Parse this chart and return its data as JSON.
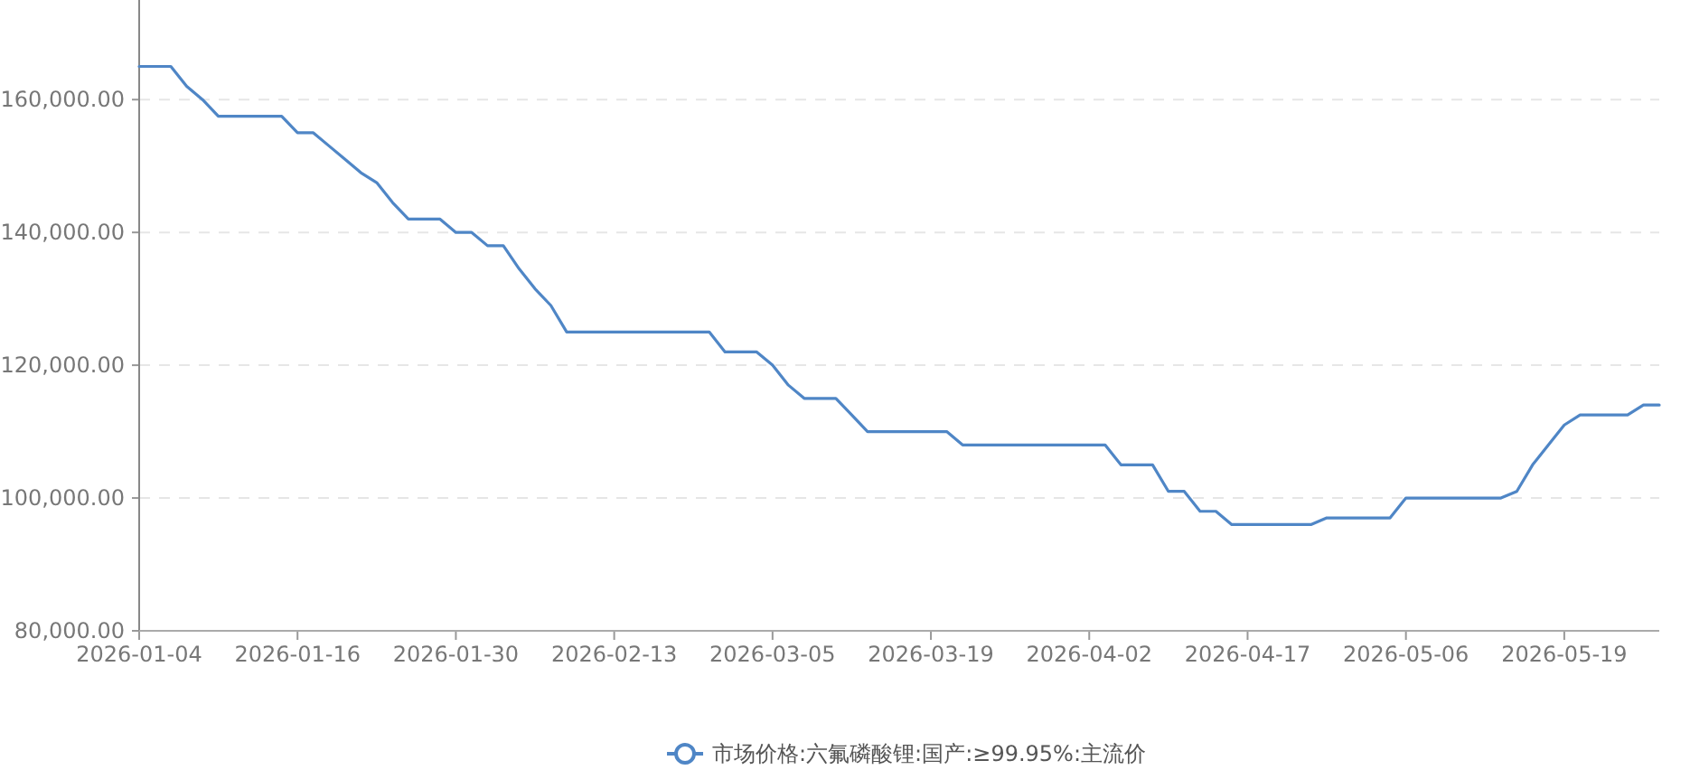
{
  "chart_data": {
    "type": "line",
    "categories": [
      "2026-01-04",
      null,
      null,
      null,
      null,
      null,
      null,
      null,
      null,
      null,
      "2026-01-16",
      null,
      null,
      null,
      null,
      null,
      null,
      null,
      null,
      null,
      "2026-01-30",
      null,
      null,
      null,
      null,
      null,
      null,
      null,
      null,
      null,
      "2026-02-13",
      null,
      null,
      null,
      null,
      null,
      null,
      null,
      null,
      null,
      "2026-03-05",
      null,
      null,
      null,
      null,
      null,
      null,
      null,
      null,
      null,
      "2026-03-19",
      null,
      null,
      null,
      null,
      null,
      null,
      null,
      null,
      null,
      "2026-04-02",
      null,
      null,
      null,
      null,
      null,
      null,
      null,
      null,
      null,
      "2026-04-17",
      null,
      null,
      null,
      null,
      null,
      null,
      null,
      null,
      null,
      "2026-05-06",
      null,
      null,
      null,
      null,
      null,
      null,
      null,
      null,
      null,
      "2026-05-19",
      null,
      null,
      null,
      null,
      null,
      null
    ],
    "series": [
      {
        "name": "市场价格:六氟磷酸锂:国产:≥99.95%:主流价",
        "color": "#4f86c6",
        "values": [
          165000,
          165000,
          165000,
          162000,
          160000,
          157500,
          157500,
          157500,
          157500,
          157500,
          155000,
          155000,
          153000,
          151000,
          149000,
          147500,
          144500,
          142000,
          142000,
          142000,
          140000,
          140000,
          138000,
          138000,
          134500,
          131500,
          129000,
          125000,
          125000,
          125000,
          125000,
          125000,
          125000,
          125000,
          125000,
          125000,
          125000,
          122000,
          122000,
          122000,
          120000,
          117000,
          115000,
          115000,
          115000,
          112500,
          110000,
          110000,
          110000,
          110000,
          110000,
          110000,
          108000,
          108000,
          108000,
          108000,
          108000,
          108000,
          108000,
          108000,
          108000,
          108000,
          105000,
          105000,
          105000,
          101000,
          101000,
          98000,
          98000,
          96000,
          96000,
          96000,
          96000,
          96000,
          96000,
          97000,
          97000,
          97000,
          97000,
          97000,
          100000,
          100000,
          100000,
          100000,
          100000,
          100000,
          100000,
          101000,
          105000,
          108000,
          111000,
          112500,
          112500,
          112500,
          112500,
          114000,
          114000
        ]
      }
    ],
    "ylim": [
      80000,
      175000
    ],
    "yticks": [
      {
        "value": 80000,
        "label": "80,000.00"
      },
      {
        "value": 100000,
        "label": "100,000.00"
      },
      {
        "value": 120000,
        "label": "120,000.00"
      },
      {
        "value": 140000,
        "label": "140,000.00"
      },
      {
        "value": 160000,
        "label": "160,000.00"
      }
    ],
    "grid": "y",
    "legend": "bottom"
  }
}
